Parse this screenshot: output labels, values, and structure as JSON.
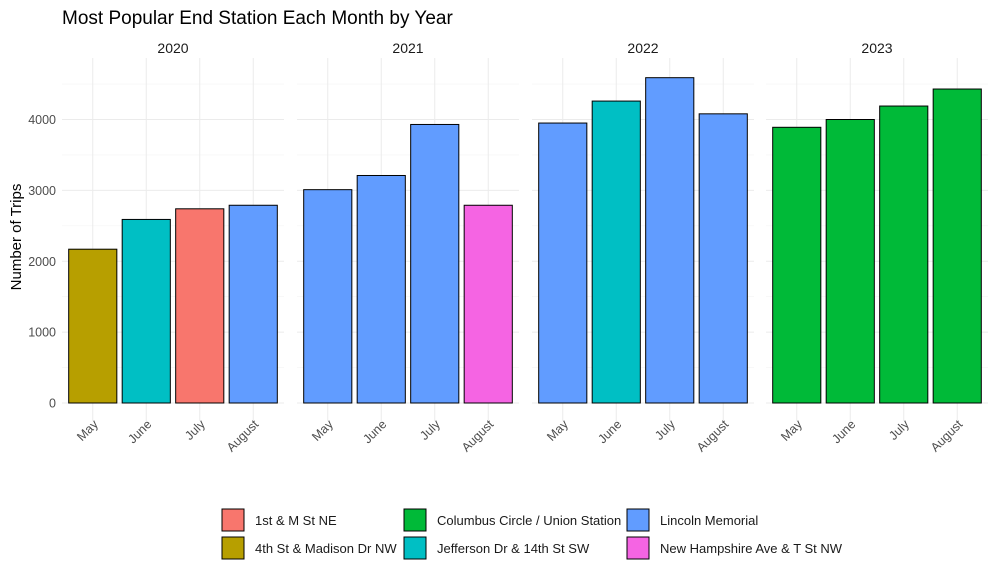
{
  "chart_data": {
    "type": "bar",
    "title": "Most Popular End Station Each Month by Year",
    "ylabel": "Number of Trips",
    "xlabel": "",
    "ylim": [
      0,
      4800
    ],
    "yticks": [
      0,
      1000,
      2000,
      3000,
      4000
    ],
    "grid": true,
    "legend_position": "bottom",
    "categories": [
      "May",
      "June",
      "July",
      "August"
    ],
    "legend": [
      {
        "label": "1st & M St NE",
        "color": "#F8766D"
      },
      {
        "label": "4th St & Madison Dr NW",
        "color": "#B79F00"
      },
      {
        "label": "Columbus Circle / Union Station",
        "color": "#00BA38"
      },
      {
        "label": "Jefferson Dr & 14th St SW",
        "color": "#00BFC4"
      },
      {
        "label": "Lincoln Memorial",
        "color": "#619CFF"
      },
      {
        "label": "New Hampshire Ave & T St NW",
        "color": "#F564E3"
      }
    ],
    "panels": [
      {
        "name": "2020",
        "values": [
          2170,
          2590,
          2740,
          2790
        ],
        "stations": [
          "4th St & Madison Dr NW",
          "Jefferson Dr & 14th St SW",
          "1st & M St NE",
          "Lincoln Memorial"
        ]
      },
      {
        "name": "2021",
        "values": [
          3010,
          3210,
          3930,
          2790
        ],
        "stations": [
          "Lincoln Memorial",
          "Lincoln Memorial",
          "Lincoln Memorial",
          "New Hampshire Ave & T St NW"
        ]
      },
      {
        "name": "2022",
        "values": [
          3950,
          4260,
          4590,
          4080
        ],
        "stations": [
          "Lincoln Memorial",
          "Jefferson Dr & 14th St SW",
          "Lincoln Memorial",
          "Lincoln Memorial"
        ]
      },
      {
        "name": "2023",
        "values": [
          3890,
          4000,
          4190,
          4430
        ],
        "stations": [
          "Columbus Circle / Union Station",
          "Columbus Circle / Union Station",
          "Columbus Circle / Union Station",
          "Columbus Circle / Union Station"
        ]
      }
    ]
  }
}
